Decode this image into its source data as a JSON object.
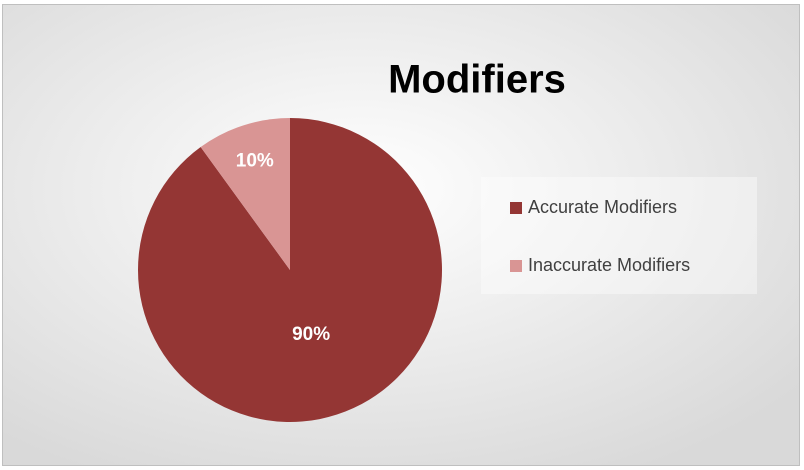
{
  "chart_data": {
    "type": "pie",
    "title": "Modifiers",
    "categories": [
      "Accurate Modifiers",
      "Inaccurate Modifiers"
    ],
    "values": [
      90,
      10
    ],
    "value_labels": [
      "90%",
      "10%"
    ],
    "colors": [
      "#943634",
      "#d99594"
    ],
    "legend": "right"
  }
}
